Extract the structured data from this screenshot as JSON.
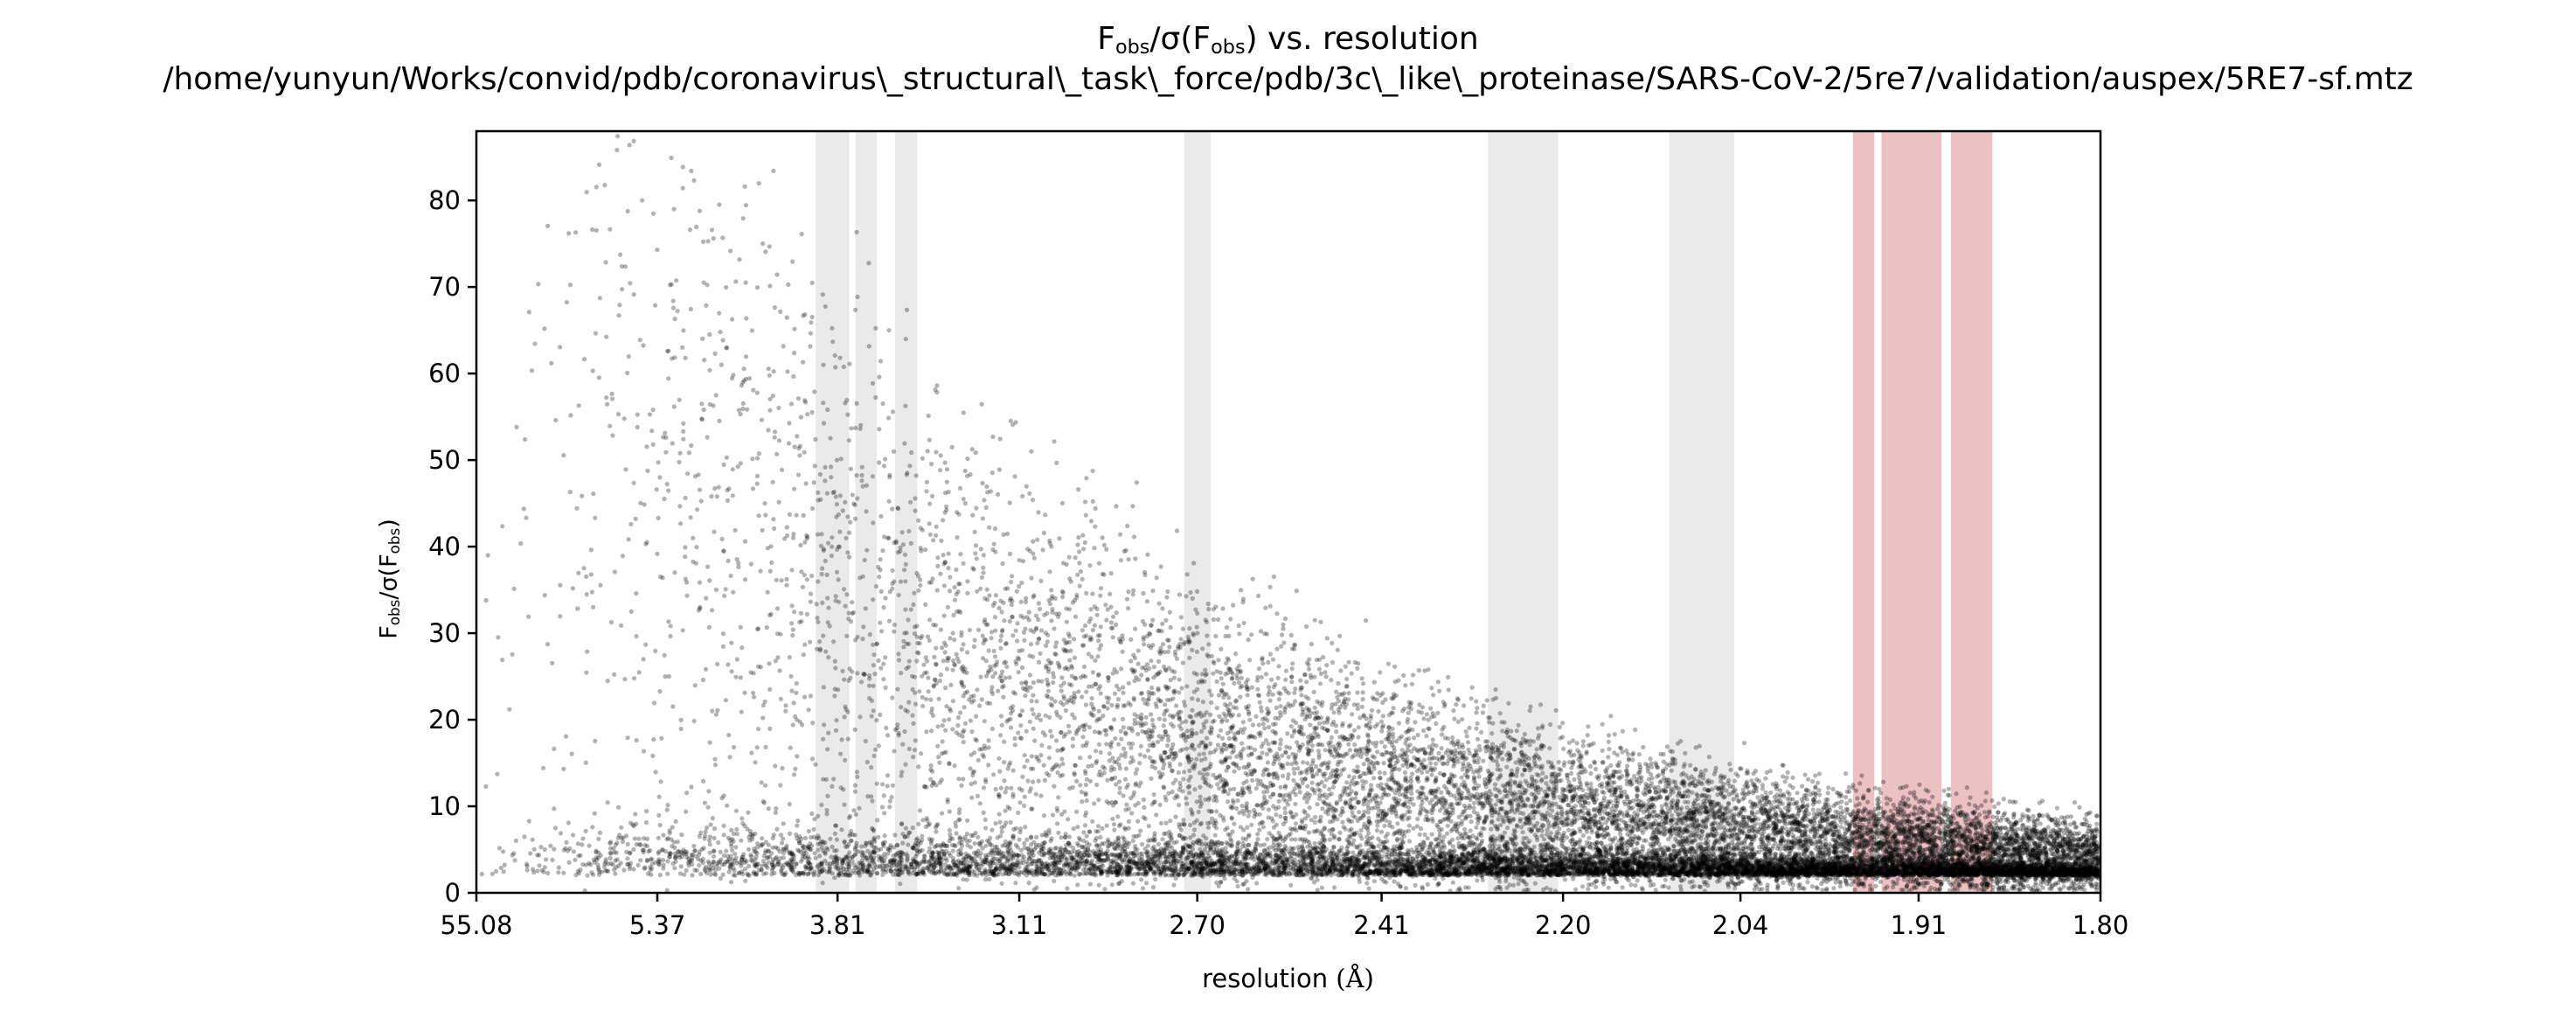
{
  "chart_data": {
    "type": "scatter",
    "title": {
      "ratio_prefix": "F",
      "ratio_sub": "obs",
      "ratio_mid": "/σ(F",
      "ratio_sub2": "obs",
      "ratio_close": ")",
      "suffix": " vs. resolution",
      "path": "/home/yunyun/Works/convid/pdb/coronavirus\\_structural\\_task\\_force/pdb/3c\\_like\\_proteinase/SARS-CoV-2/5re7/validation/auspex/5RE7-sf.mtz"
    },
    "xlabel": {
      "text": "resolution",
      "unit": "(Å)"
    },
    "ylabel": {
      "p1": "F",
      "s1": "obs",
      "p2": "/σ(F",
      "s2": "obs",
      "p3": ")"
    },
    "x_scale": "reciprocal-squared",
    "x_ticks": [
      "55.08",
      "5.37",
      "3.81",
      "3.11",
      "2.70",
      "2.41",
      "2.20",
      "2.04",
      "1.91",
      "1.80"
    ],
    "xlim": [
      55.08,
      1.8
    ],
    "y_ticks": [
      0,
      10,
      20,
      30,
      40,
      50,
      60,
      70,
      80
    ],
    "ylim": [
      0,
      88
    ],
    "grid": false,
    "point_color": "#000000",
    "point_alpha": 0.3,
    "gray_band_color": "#d9d9d9",
    "red_band_color": "#e8b6b9",
    "highlight_bands": [
      {
        "type": "gray",
        "x_from": 3.93,
        "x_to": 3.75
      },
      {
        "type": "gray",
        "x_from": 3.72,
        "x_to": 3.62
      },
      {
        "type": "gray",
        "x_from": 3.54,
        "x_to": 3.45
      },
      {
        "type": "gray",
        "x_from": 2.725,
        "x_to": 2.675
      },
      {
        "type": "gray",
        "x_from": 2.28,
        "x_to": 2.205
      },
      {
        "type": "gray",
        "x_from": 2.1,
        "x_to": 2.045
      },
      {
        "type": "red",
        "x_from": 1.955,
        "x_to": 1.94
      },
      {
        "type": "red",
        "x_from": 1.935,
        "x_to": 1.895
      },
      {
        "type": "red",
        "x_from": 1.889,
        "x_to": 1.863
      }
    ],
    "series": [
      {
        "description_of_distribution": "dense scatter; approx. 30000 reflections; mean Fobs/sigma falls with resolution",
        "points_sampled": [
          {
            "x": 8.0,
            "y": 45
          },
          {
            "x": 5.37,
            "y": 70
          },
          {
            "x": 4.2,
            "y": 85
          },
          {
            "x": 3.81,
            "y": 60
          },
          {
            "x": 3.11,
            "y": 40
          },
          {
            "x": 2.7,
            "y": 30
          },
          {
            "x": 2.41,
            "y": 15
          },
          {
            "x": 2.2,
            "y": 10
          },
          {
            "x": 2.04,
            "y": 6
          },
          {
            "x": 1.91,
            "y": 4
          },
          {
            "x": 1.8,
            "y": 2
          }
        ]
      }
    ]
  }
}
